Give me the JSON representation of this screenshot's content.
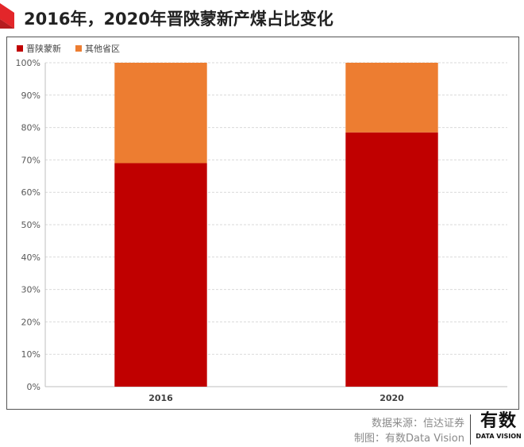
{
  "title": "2016年，2020年晋陕蒙新产煤占比变化",
  "footer": {
    "source": "数据来源：信达证券",
    "credit": "制图：有数Data Vision"
  },
  "logo": {
    "main": "有数",
    "sub": "DATA VISION"
  },
  "colors": {
    "series_main": "#c00000",
    "series_other": "#ed7d31",
    "title_accent": "#e3262a"
  },
  "chart_data": {
    "type": "bar",
    "stacked": true,
    "categories": [
      "2016",
      "2020"
    ],
    "series": [
      {
        "name": "晋陕蒙新",
        "values": [
          69,
          78.5
        ],
        "color": "#c00000"
      },
      {
        "name": "其他省区",
        "values": [
          31,
          21.5
        ],
        "color": "#ed7d31"
      }
    ],
    "ylim": [
      0,
      100
    ],
    "yticks": [
      "0%",
      "10%",
      "20%",
      "30%",
      "40%",
      "50%",
      "60%",
      "70%",
      "80%",
      "90%",
      "100%"
    ],
    "grid": true,
    "legend_position": "top-left"
  }
}
